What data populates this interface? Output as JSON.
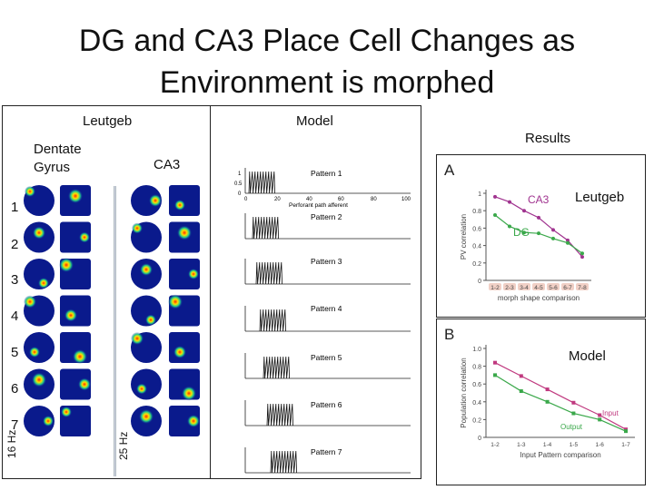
{
  "slide": {
    "title_line1": "DG and CA3 Place Cell Changes as",
    "title_line2": "Environment is morphed"
  },
  "left_panel": {
    "header": "Leutgeb",
    "dg_label_line1": "Dentate",
    "dg_label_line2": "Gyrus",
    "ca3_label": "CA3",
    "row_numbers": [
      "1",
      "2",
      "3",
      "4",
      "5",
      "6",
      "7"
    ],
    "dg_rate": "16 Hz",
    "ca3_rate": "25 Hz"
  },
  "model_panel": {
    "header": "Model",
    "axis_ticks_y": [
      "1",
      "0.5",
      "0"
    ],
    "axis_ticks_x": [
      "0",
      "20",
      "40",
      "60",
      "80",
      "100"
    ],
    "axis_xlabel": "Perforant path afferent",
    "patterns": [
      "Pattern 1",
      "Pattern 2",
      "Pattern 3",
      "Pattern 4",
      "Pattern 5",
      "Pattern 6",
      "Pattern 7"
    ]
  },
  "results": {
    "header": "Results",
    "chart_a_side_label": "Leutgeb",
    "chart_b_side_label": "Model"
  },
  "chart_data": [
    {
      "type": "line",
      "panel_letter": "A",
      "title": "",
      "ylabel": "PV correlation",
      "xlabel": "morph shape comparison",
      "ylim": [
        0,
        1.0
      ],
      "y_ticks": [
        "0",
        "0.2",
        "0.4",
        "0.6",
        "0.8",
        "1"
      ],
      "categories": [
        "1-2",
        "2-3",
        "3-4",
        "4-5",
        "5-6",
        "6-7",
        "7-8"
      ],
      "series": [
        {
          "name": "CA3",
          "color": "#a0338f",
          "values": [
            0.96,
            0.9,
            0.8,
            0.72,
            0.58,
            0.46,
            0.27
          ]
        },
        {
          "name": "DG",
          "color": "#3aa84a",
          "values": [
            0.75,
            0.62,
            0.55,
            0.54,
            0.48,
            0.43,
            0.31
          ]
        }
      ]
    },
    {
      "type": "line",
      "panel_letter": "B",
      "title": "",
      "ylabel": "Population correlation",
      "xlabel": "Input Pattern comparison",
      "ylim": [
        0,
        1.0
      ],
      "y_ticks": [
        "0",
        "0.2",
        "0.4",
        "0.6",
        "0.8",
        "1.0"
      ],
      "categories": [
        "1-2",
        "1-3",
        "1-4",
        "1-5",
        "1-6",
        "1-7"
      ],
      "series": [
        {
          "name": "Input",
          "color": "#c0397f",
          "values": [
            0.84,
            0.69,
            0.54,
            0.39,
            0.25,
            0.09
          ]
        },
        {
          "name": "Output",
          "color": "#3aa84a",
          "values": [
            0.7,
            0.52,
            0.4,
            0.27,
            0.2,
            0.07
          ]
        }
      ]
    }
  ]
}
